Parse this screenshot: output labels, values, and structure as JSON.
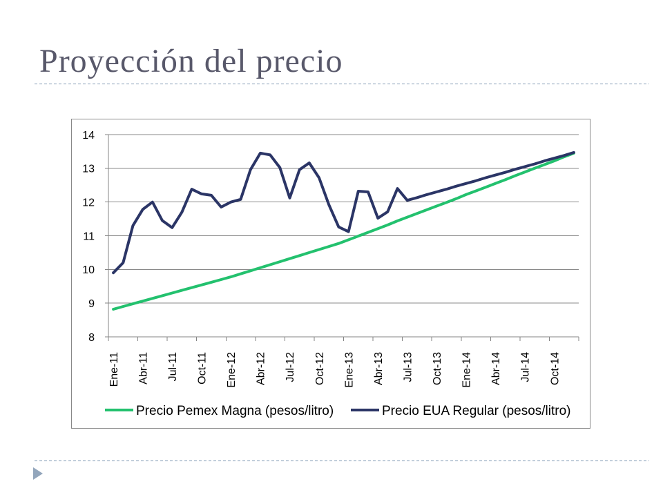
{
  "slide": {
    "title": "Proyección del precio",
    "title_color": "#58586a",
    "divider_color": "#a6b8cb",
    "bullet_icon": "triangle-right-icon",
    "bullet_color": "#93a6bc"
  },
  "chart_data": {
    "type": "line",
    "x_ticks": [
      "Ene-11",
      "Abr-11",
      "Jul-11",
      "Oct-11",
      "Ene-12",
      "Abr-12",
      "Jul-12",
      "Oct-12",
      "Ene-13",
      "Abr-13",
      "Jul-13",
      "Oct-13",
      "Ene-14",
      "Abr-14",
      "Jul-14",
      "Oct-14"
    ],
    "ylim": [
      8,
      14
    ],
    "y_ticks": [
      8,
      9,
      10,
      11,
      12,
      13,
      14
    ],
    "grid": true,
    "legend": "bottom",
    "series": [
      {
        "name": "Precio Pemex Magna (pesos/litro)",
        "color": "#23c16e",
        "values": [
          8.82,
          8.9,
          8.98,
          9.06,
          9.14,
          9.22,
          9.3,
          9.38,
          9.46,
          9.54,
          9.62,
          9.7,
          9.78,
          9.87,
          9.96,
          10.05,
          10.14,
          10.23,
          10.32,
          10.41,
          10.5,
          10.59,
          10.68,
          10.77,
          10.88,
          10.99,
          11.1,
          11.21,
          11.32,
          11.44,
          11.55,
          11.66,
          11.77,
          11.88,
          11.99,
          12.1,
          12.22,
          12.33,
          12.44,
          12.55,
          12.66,
          12.78,
          12.89,
          13.0,
          13.11,
          13.22,
          13.34,
          13.45
        ]
      },
      {
        "name": "Precio EUA Regular (pesos/litro)",
        "color": "#2b3566",
        "values": [
          9.9,
          10.2,
          11.3,
          11.78,
          12.0,
          11.45,
          11.24,
          11.7,
          12.38,
          12.24,
          12.2,
          11.85,
          12.0,
          12.08,
          12.96,
          13.45,
          13.4,
          13.02,
          12.12,
          12.96,
          13.16,
          12.72,
          11.92,
          11.26,
          11.12,
          12.32,
          12.3,
          11.52,
          11.71,
          12.4,
          12.05,
          12.13,
          12.22,
          12.3,
          12.38,
          12.47,
          12.55,
          12.63,
          12.72,
          12.8,
          12.88,
          12.97,
          13.05,
          13.13,
          13.22,
          13.3,
          13.38,
          13.47
        ]
      }
    ]
  }
}
